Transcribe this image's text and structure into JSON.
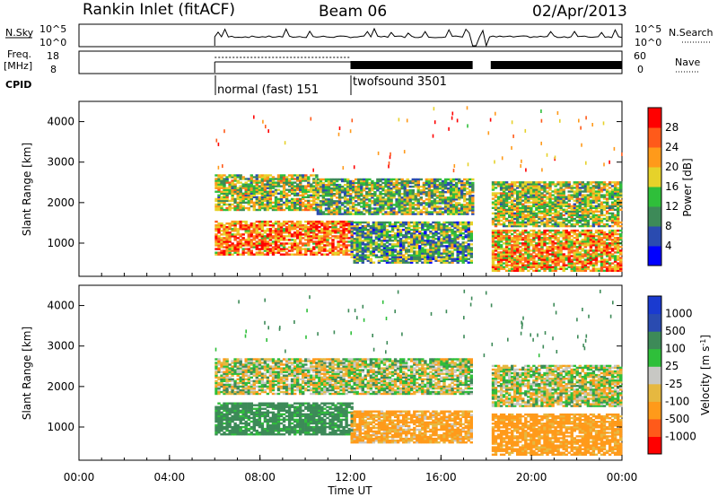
{
  "header": {
    "station": "Rankin Inlet (fitACF)",
    "beam": "Beam 06",
    "date": "02/Apr/2013"
  },
  "colors": {
    "power_scale": [
      "#0000ff",
      "#2a4bb0",
      "#3d8a58",
      "#2fbf3a",
      "#e6d22a",
      "#ff9a1a",
      "#ff5a1a",
      "#ff0000"
    ],
    "velocity_scale": [
      "#ff0000",
      "#ff5a1a",
      "#ff9a1a",
      "#e6b840",
      "#c8c8c4",
      "#2fbf3a",
      "#3d8a58",
      "#2a4bb0",
      "#1a3ad0"
    ]
  },
  "chart_data": [
    {
      "type": "line",
      "panel": "N.Sky / N.Search",
      "left_label": "N.Sky",
      "right_label": "N.Search",
      "left_ticks": [
        "10^5",
        "10^0"
      ],
      "right_ticks": [
        "10^5",
        "10^0"
      ],
      "x_range_hours": [
        0,
        24
      ],
      "data_start_hour": 6.0,
      "data_end_hour": 24.0,
      "gap_hours": [
        [
          17.4,
          17.6
        ],
        [
          17.95,
          18.15
        ]
      ]
    },
    {
      "type": "line",
      "panel": "Freq. / Nave",
      "left_label": "Freq.",
      "left_unit": "[MHz]",
      "right_label": "Nave",
      "left_ticks": [
        "18",
        "8"
      ],
      "right_ticks": [
        "60",
        "0"
      ],
      "segments": [
        {
          "start_hour": 6.0,
          "end_hour": 12.0,
          "mode": "normal (fast) 151"
        },
        {
          "start_hour": 12.0,
          "end_hour": 24.0,
          "mode": "twofsound 3501"
        }
      ]
    },
    {
      "type": "table",
      "panel": "CPID",
      "label": "CPID",
      "entries": [
        {
          "start_hour": 6.0,
          "text": "normal (fast) 151"
        },
        {
          "start_hour": 12.0,
          "text": "twofsound 3501"
        }
      ]
    },
    {
      "type": "heatmap",
      "panel": "Power",
      "ylabel": "Slant Range [km]",
      "colorbar_label": "Power [dB]",
      "colorbar_ticks": [
        4,
        8,
        12,
        16,
        20,
        24,
        28
      ],
      "ylim": [
        180,
        4500
      ],
      "y_ticks": [
        1000,
        2000,
        3000,
        4000
      ],
      "xlim_hours": [
        0,
        24
      ],
      "bands": [
        {
          "x0": 6.0,
          "x1": 12.0,
          "y0": 700,
          "y1": 1550,
          "value": 24
        },
        {
          "x0": 6.0,
          "x1": 10.5,
          "y0": 1800,
          "y1": 2700,
          "value": 16
        },
        {
          "x0": 10.5,
          "x1": 17.4,
          "y0": 1700,
          "y1": 2600,
          "value": 14
        },
        {
          "x0": 12.0,
          "x1": 17.4,
          "y0": 500,
          "y1": 1500,
          "value": 12
        },
        {
          "x0": 18.0,
          "x1": 24.0,
          "y0": 1400,
          "y1": 2500,
          "value": 16
        },
        {
          "x0": 18.0,
          "x1": 24.0,
          "y0": 300,
          "y1": 1300,
          "value": 22
        }
      ]
    },
    {
      "type": "heatmap",
      "panel": "Velocity",
      "ylabel": "Slant Range [km]",
      "xlabel": "Time UT",
      "colorbar_label": "Velocity [m s-1]",
      "colorbar_ticks": [
        -1000,
        -500,
        -100,
        -25,
        25,
        100,
        500,
        1000
      ],
      "ylim": [
        180,
        4500
      ],
      "y_ticks": [
        1000,
        2000,
        3000,
        4000
      ],
      "x_ticks": [
        "00:00",
        "04:00",
        "08:00",
        "12:00",
        "16:00",
        "20:00",
        "00:00"
      ],
      "xlim_hours": [
        0,
        24
      ],
      "bands": [
        {
          "x0": 6.0,
          "x1": 12.0,
          "y0": 800,
          "y1": 1600,
          "value": 200
        },
        {
          "x0": 6.0,
          "x1": 17.4,
          "y0": 1800,
          "y1": 2700,
          "value": 0
        },
        {
          "x0": 12.0,
          "x1": 17.4,
          "y0": 600,
          "y1": 1400,
          "value": -150
        },
        {
          "x0": 18.0,
          "x1": 24.0,
          "y0": 1500,
          "y1": 2500,
          "value": 0
        },
        {
          "x0": 18.0,
          "x1": 24.0,
          "y0": 300,
          "y1": 1300,
          "value": -200
        }
      ]
    }
  ],
  "labels": {
    "nsky": "N.Sky",
    "nsearch": "N.Search",
    "freq": "Freq.",
    "freq_unit": "[MHz]",
    "nave": "Nave",
    "cpid": "CPID",
    "cpid_a": "normal (fast) 151",
    "cpid_b": "twofsound 3501",
    "slant": "Slant Range [km]",
    "time": "Time UT",
    "power_cb": "Power [dB]",
    "vel_cb": "Velocity [m s"
  }
}
